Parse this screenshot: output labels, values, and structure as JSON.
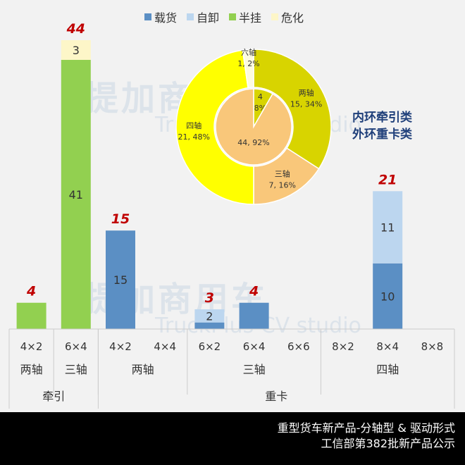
{
  "legend": [
    {
      "name": "载货",
      "color": "#5b8fc4"
    },
    {
      "name": "自卸",
      "color": "#bcd6ef"
    },
    {
      "name": "半挂",
      "color": "#92d050"
    },
    {
      "name": "危化",
      "color": "#fdf6c8"
    }
  ],
  "watermark": {
    "cn": "提加商用车",
    "en": "TruckPlus CV studio"
  },
  "chart_data": [
    {
      "type": "bar",
      "stacked": true,
      "categories": [
        "4×2",
        "6×4",
        "4×2",
        "4×4",
        "6×2",
        "6×4",
        "6×6",
        "8×2",
        "8×4",
        "8×8"
      ],
      "axle_groups": [
        {
          "label": "两轴",
          "span": 1
        },
        {
          "label": "三轴",
          "span": 1
        },
        {
          "label": "两轴",
          "span": 2
        },
        {
          "label": "三轴",
          "span": 3
        },
        {
          "label": "四轴",
          "span": 3
        }
      ],
      "type_groups": [
        {
          "label": "牵引",
          "span": 2
        },
        {
          "label": "重卡",
          "span": 8
        }
      ],
      "series": [
        {
          "name": "载货",
          "values": [
            0,
            0,
            15,
            0,
            1,
            4,
            0,
            0,
            10,
            0
          ]
        },
        {
          "name": "自卸",
          "values": [
            0,
            0,
            0,
            0,
            2,
            0,
            0,
            0,
            11,
            0
          ]
        },
        {
          "name": "半挂",
          "values": [
            4,
            41,
            0,
            0,
            0,
            0,
            0,
            0,
            0,
            0
          ]
        },
        {
          "name": "危化",
          "values": [
            0,
            3,
            0,
            0,
            0,
            0,
            0,
            0,
            0,
            0
          ]
        }
      ],
      "segment_labels_shown": {
        "载货": [
          null,
          null,
          "15",
          null,
          null,
          null,
          null,
          null,
          "10",
          null
        ],
        "自卸": [
          null,
          null,
          null,
          null,
          "2",
          null,
          null,
          null,
          "11",
          null
        ],
        "半挂": [
          null,
          "41",
          null,
          null,
          null,
          null,
          null,
          null,
          null,
          null
        ],
        "危化": [
          null,
          "3",
          null,
          null,
          null,
          null,
          null,
          null,
          null,
          null
        ]
      },
      "totals": [
        "4",
        "44",
        "15",
        "",
        "3",
        "4",
        "",
        "",
        "21",
        ""
      ],
      "ylim": [
        0,
        44
      ]
    },
    {
      "type": "pie",
      "donut": true,
      "outer": [
        {
          "label": "两轴",
          "value": 15,
          "pct": "34%",
          "color": "#d8d400"
        },
        {
          "label": "三轴",
          "value": 7,
          "pct": "16%",
          "color": "#f9c77a"
        },
        {
          "label": "四轴",
          "value": 21,
          "pct": "48%",
          "color": "#ffff00"
        },
        {
          "label": "六轴",
          "value": 1,
          "pct": "2%",
          "color": "#fdfbe0"
        }
      ],
      "inner": [
        {
          "label": "",
          "value": 4,
          "pct": "8%",
          "color": "#d8d400"
        },
        {
          "label": "",
          "value": 44,
          "pct": "92%",
          "color": "#f9c77a"
        }
      ],
      "note": [
        "内环牵引类",
        "外环重卡类"
      ]
    }
  ],
  "footer": {
    "line1": "重型货车新产品-分轴型 & 驱动形式",
    "line2": "工信部第382批新产品公示"
  }
}
